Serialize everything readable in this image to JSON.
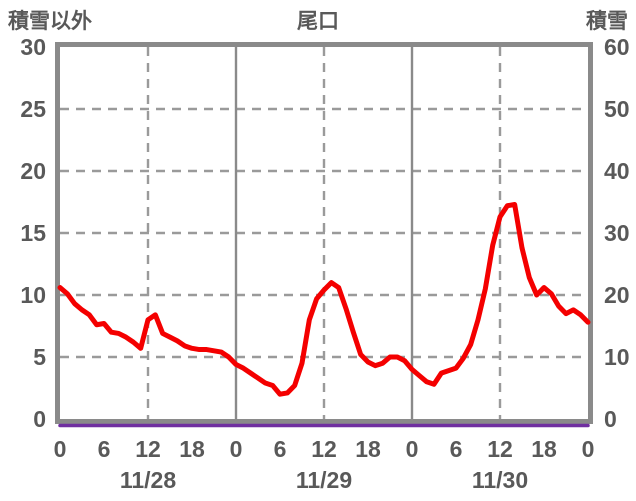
{
  "header": {
    "left_label": "積雪以外",
    "title": "尾口",
    "right_label": "積雪"
  },
  "colors": {
    "rain_line": "#f40000",
    "snow_line": "#7030a0",
    "frame": "#8a8a8a",
    "grid": "#9a9a9a",
    "text": "#595959"
  },
  "chart_data": {
    "type": "line",
    "title": "尾口",
    "left_axis": {
      "label": "積雪以外",
      "min": 0,
      "max": 30,
      "ticks": [
        30,
        25,
        20,
        15,
        10,
        5,
        0
      ]
    },
    "right_axis": {
      "label": "積雪",
      "min": 0,
      "max": 60,
      "ticks": [
        60,
        50,
        40,
        30,
        20,
        10,
        0
      ]
    },
    "x_axis": {
      "min_hour": 0,
      "max_hour": 72,
      "tick_hours": [
        0,
        6,
        12,
        18,
        24,
        30,
        36,
        42,
        48,
        54,
        60,
        66,
        72
      ],
      "tick_labels": [
        "0",
        "6",
        "12",
        "18",
        "0",
        "6",
        "12",
        "18",
        "0",
        "6",
        "12",
        "18",
        "0"
      ],
      "date_labels": [
        {
          "hour": 12,
          "label": "11/28"
        },
        {
          "hour": 36,
          "label": "11/29"
        },
        {
          "hour": 60,
          "label": "11/30"
        }
      ]
    },
    "gridlines": {
      "h_values_left_axis": [
        25,
        20,
        15,
        10,
        5
      ],
      "v_dashed_hours": [
        12,
        36,
        60
      ],
      "v_solid_hours": [
        24,
        48
      ]
    },
    "series": [
      {
        "name": "積雪以外",
        "axis": "left",
        "color": "#f40000",
        "x": [
          0,
          1,
          2,
          3,
          4,
          5,
          6,
          7,
          8,
          9,
          10,
          11,
          12,
          13,
          14,
          15,
          16,
          17,
          18,
          19,
          20,
          21,
          22,
          23,
          24,
          25,
          26,
          27,
          28,
          29,
          30,
          31,
          32,
          33,
          34,
          35,
          36,
          37,
          38,
          39,
          40,
          41,
          42,
          43,
          44,
          45,
          46,
          47,
          48,
          49,
          50,
          51,
          52,
          53,
          54,
          55,
          56,
          57,
          58,
          59,
          60,
          61,
          62,
          63,
          64,
          65,
          66,
          67,
          68,
          69,
          70,
          71,
          72
        ],
        "values": [
          10.6,
          10.1,
          9.3,
          8.8,
          8.4,
          7.6,
          7.7,
          7.0,
          6.9,
          6.6,
          6.2,
          5.7,
          8.0,
          8.4,
          6.9,
          6.6,
          6.3,
          5.9,
          5.7,
          5.6,
          5.6,
          5.5,
          5.4,
          5.0,
          4.4,
          4.1,
          3.7,
          3.3,
          2.9,
          2.7,
          2.0,
          2.1,
          2.7,
          4.5,
          8.0,
          9.7,
          10.4,
          11.0,
          10.6,
          8.9,
          7.0,
          5.2,
          4.6,
          4.3,
          4.5,
          5.0,
          5.0,
          4.7,
          4.0,
          3.5,
          3.0,
          2.8,
          3.7,
          3.9,
          4.1,
          4.9,
          6.0,
          8.0,
          10.5,
          14.0,
          16.3,
          17.2,
          17.3,
          13.8,
          11.4,
          10.0,
          10.6,
          10.1,
          9.1,
          8.5,
          8.8,
          8.4,
          7.8
        ]
      },
      {
        "name": "積雪",
        "axis": "right",
        "color": "#7030a0",
        "x": [
          0,
          72
        ],
        "values": [
          0,
          0
        ]
      }
    ]
  }
}
